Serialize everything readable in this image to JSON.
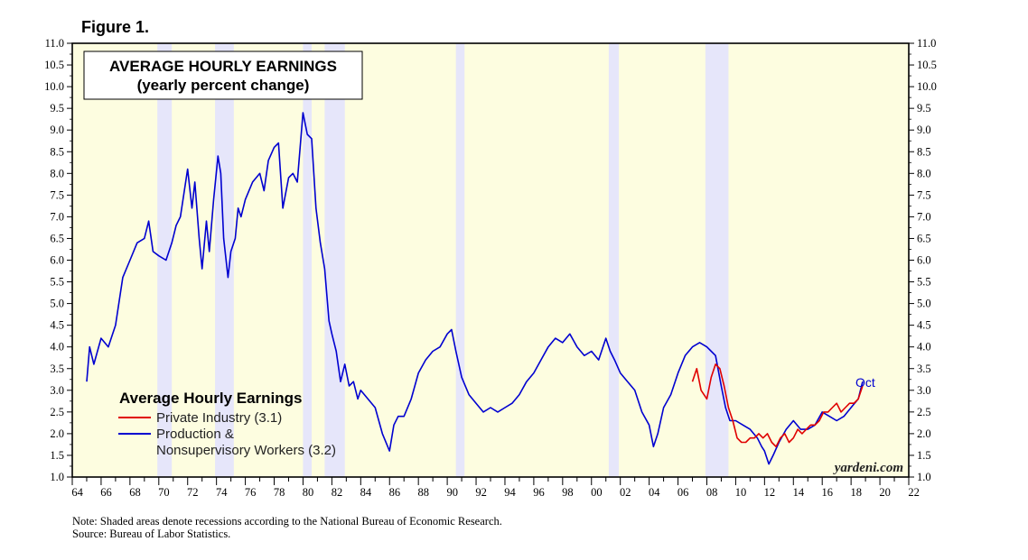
{
  "figure_label": "Figure 1.",
  "note": "Note: Shaded areas denote recessions according to the National Bureau of Economic Research.",
  "source": "Source: Bureau of Labor Statistics.",
  "watermark": "yardeni.com",
  "colors": {
    "plot_bg": "#fdfde0",
    "recession": "#e6e6fa",
    "private": "#e00000",
    "production": "#0000d0"
  },
  "chart_data": {
    "type": "line",
    "title": "AVERAGE HOURLY EARNINGS",
    "subtitle": "(yearly percent change)",
    "legend": {
      "title": "Average Hourly Earnings",
      "items": [
        {
          "label": "Private Industry (3.1)",
          "series": "private"
        },
        {
          "label": "Production &",
          "label2": "Nonsupervisory Workers (3.2)",
          "series": "production"
        }
      ],
      "placement": "lower-left"
    },
    "annotation": "Oct",
    "xlim": [
      1964,
      2022
    ],
    "ylim": [
      1.0,
      11.0
    ],
    "grid": false,
    "y_ticks": [
      "1.0",
      "1.5",
      "2.0",
      "2.5",
      "3.0",
      "3.5",
      "4.0",
      "4.5",
      "5.0",
      "5.5",
      "6.0",
      "6.5",
      "7.0",
      "7.5",
      "8.0",
      "8.5",
      "9.0",
      "9.5",
      "10.0",
      "10.5",
      "11.0"
    ],
    "x_tick_labels": [
      "64",
      "66",
      "68",
      "70",
      "72",
      "74",
      "76",
      "78",
      "80",
      "82",
      "84",
      "86",
      "88",
      "90",
      "92",
      "94",
      "96",
      "98",
      "00",
      "02",
      "04",
      "06",
      "08",
      "10",
      "12",
      "14",
      "16",
      "18",
      "20",
      "22"
    ],
    "x_tick_years": [
      1964,
      1966,
      1968,
      1970,
      1972,
      1974,
      1976,
      1978,
      1980,
      1982,
      1984,
      1986,
      1988,
      1990,
      1992,
      1994,
      1996,
      1998,
      2000,
      2002,
      2004,
      2006,
      2008,
      2010,
      2012,
      2014,
      2016,
      2018,
      2020,
      2022
    ],
    "recessions": [
      [
        1969.9,
        1970.9
      ],
      [
        1973.9,
        1975.2
      ],
      [
        1980.0,
        1980.6
      ],
      [
        1981.5,
        1982.9
      ],
      [
        1990.6,
        1991.2
      ],
      [
        2001.2,
        2001.9
      ],
      [
        2007.9,
        2009.5
      ]
    ],
    "series": [
      {
        "key": "production",
        "name": "Production & Nonsupervisory Workers",
        "x": [
          1965.0,
          1965.2,
          1965.5,
          1966.0,
          1966.5,
          1967.0,
          1967.5,
          1968.0,
          1968.5,
          1969.0,
          1969.3,
          1969.6,
          1970.0,
          1970.5,
          1970.9,
          1971.2,
          1971.5,
          1972.0,
          1972.3,
          1972.5,
          1972.8,
          1973.0,
          1973.3,
          1973.5,
          1973.8,
          1974.1,
          1974.3,
          1974.5,
          1974.8,
          1975.0,
          1975.3,
          1975.5,
          1975.7,
          1976.0,
          1976.5,
          1977.0,
          1977.3,
          1977.6,
          1978.0,
          1978.3,
          1978.6,
          1979.0,
          1979.3,
          1979.6,
          1980.0,
          1980.3,
          1980.6,
          1980.9,
          1981.2,
          1981.5,
          1981.8,
          1982.0,
          1982.3,
          1982.6,
          1982.9,
          1983.2,
          1983.5,
          1983.8,
          1984.0,
          1984.5,
          1985.0,
          1985.5,
          1986.0,
          1986.3,
          1986.6,
          1987.0,
          1987.5,
          1988.0,
          1988.5,
          1989.0,
          1989.5,
          1990.0,
          1990.3,
          1990.6,
          1991.0,
          1991.5,
          1992.0,
          1992.5,
          1993.0,
          1993.5,
          1994.0,
          1994.5,
          1995.0,
          1995.5,
          1996.0,
          1996.5,
          1997.0,
          1997.5,
          1998.0,
          1998.5,
          1999.0,
          1999.5,
          2000.0,
          2000.5,
          2001.0,
          2001.3,
          2001.6,
          2002.0,
          2002.5,
          2003.0,
          2003.5,
          2004.0,
          2004.3,
          2004.6,
          2005.0,
          2005.5,
          2006.0,
          2006.5,
          2007.0,
          2007.5,
          2008.0,
          2008.3,
          2008.6,
          2009.0,
          2009.3,
          2009.6,
          2010.0,
          2010.5,
          2011.0,
          2011.5,
          2011.8,
          2012.0,
          2012.3,
          2012.6,
          2013.0,
          2013.5,
          2014.0,
          2014.5,
          2015.0,
          2015.5,
          2016.0,
          2016.5,
          2017.0,
          2017.5,
          2018.0,
          2018.5,
          2018.8
        ],
        "values": [
          3.2,
          4.0,
          3.6,
          4.2,
          4.0,
          4.5,
          5.6,
          6.0,
          6.4,
          6.5,
          6.9,
          6.2,
          6.1,
          6.0,
          6.4,
          6.8,
          7.0,
          8.1,
          7.2,
          7.8,
          6.5,
          5.8,
          6.9,
          6.2,
          7.4,
          8.4,
          8.0,
          6.5,
          5.6,
          6.2,
          6.5,
          7.2,
          7.0,
          7.4,
          7.8,
          8.0,
          7.6,
          8.3,
          8.6,
          8.7,
          7.2,
          7.9,
          8.0,
          7.8,
          9.4,
          8.9,
          8.8,
          7.2,
          6.4,
          5.8,
          4.6,
          4.3,
          3.9,
          3.2,
          3.6,
          3.1,
          3.2,
          2.8,
          3.0,
          2.8,
          2.6,
          2.0,
          1.6,
          2.2,
          2.4,
          2.4,
          2.8,
          3.4,
          3.7,
          3.9,
          4.0,
          4.3,
          4.4,
          3.9,
          3.3,
          2.9,
          2.7,
          2.5,
          2.6,
          2.5,
          2.6,
          2.7,
          2.9,
          3.2,
          3.4,
          3.7,
          4.0,
          4.2,
          4.1,
          4.3,
          4.0,
          3.8,
          3.9,
          3.7,
          4.2,
          3.9,
          3.7,
          3.4,
          3.2,
          3.0,
          2.5,
          2.2,
          1.7,
          2.0,
          2.6,
          2.9,
          3.4,
          3.8,
          4.0,
          4.1,
          4.0,
          3.9,
          3.8,
          3.1,
          2.6,
          2.3,
          2.3,
          2.2,
          2.1,
          1.9,
          1.7,
          1.6,
          1.3,
          1.5,
          1.8,
          2.1,
          2.3,
          2.1,
          2.1,
          2.2,
          2.5,
          2.4,
          2.3,
          2.4,
          2.6,
          2.8,
          3.2
        ]
      },
      {
        "key": "private",
        "name": "Private Industry",
        "x": [
          2007.0,
          2007.3,
          2007.6,
          2008.0,
          2008.3,
          2008.6,
          2008.9,
          2009.2,
          2009.5,
          2009.8,
          2010.1,
          2010.4,
          2010.7,
          2011.0,
          2011.3,
          2011.6,
          2011.9,
          2012.2,
          2012.5,
          2012.8,
          2013.1,
          2013.4,
          2013.7,
          2014.0,
          2014.3,
          2014.6,
          2014.9,
          2015.2,
          2015.5,
          2015.8,
          2016.1,
          2016.4,
          2016.7,
          2017.0,
          2017.3,
          2017.6,
          2017.9,
          2018.2,
          2018.5,
          2018.8
        ],
        "values": [
          3.2,
          3.5,
          3.0,
          2.8,
          3.3,
          3.6,
          3.5,
          3.1,
          2.6,
          2.3,
          1.9,
          1.8,
          1.8,
          1.9,
          1.9,
          2.0,
          1.9,
          2.0,
          1.8,
          1.7,
          1.9,
          2.0,
          1.8,
          1.9,
          2.1,
          2.0,
          2.1,
          2.2,
          2.2,
          2.3,
          2.5,
          2.5,
          2.6,
          2.7,
          2.5,
          2.6,
          2.7,
          2.7,
          2.8,
          3.1
        ]
      }
    ]
  }
}
